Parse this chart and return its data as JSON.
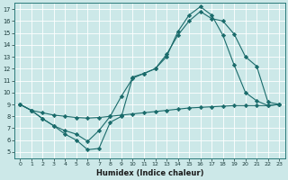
{
  "xlabel": "Humidex (Indice chaleur)",
  "bg_color": "#cce8e8",
  "grid_color": "#b0d4d4",
  "line_color": "#1a6b6b",
  "xlim": [
    -0.5,
    23.5
  ],
  "ylim": [
    4.5,
    17.5
  ],
  "xticks": [
    0,
    1,
    2,
    3,
    4,
    5,
    6,
    7,
    8,
    9,
    10,
    11,
    12,
    13,
    14,
    15,
    16,
    17,
    18,
    19,
    20,
    21,
    22,
    23
  ],
  "yticks": [
    5,
    6,
    7,
    8,
    9,
    10,
    11,
    12,
    13,
    14,
    15,
    16,
    17
  ],
  "line1_x": [
    0,
    1,
    2,
    3,
    4,
    5,
    6,
    7,
    8,
    9,
    10,
    11,
    12,
    13,
    14,
    15,
    16,
    17,
    18,
    19,
    20,
    21,
    22,
    23
  ],
  "line1_y": [
    9.0,
    8.5,
    8.3,
    8.1,
    8.0,
    7.9,
    7.85,
    7.9,
    8.0,
    8.1,
    8.2,
    8.3,
    8.4,
    8.5,
    8.6,
    8.7,
    8.75,
    8.8,
    8.85,
    8.9,
    8.9,
    8.9,
    8.9,
    9.0
  ],
  "line2_x": [
    0,
    1,
    2,
    3,
    4,
    5,
    6,
    7,
    8,
    9,
    10,
    11,
    12,
    13,
    14,
    15,
    16,
    17,
    18,
    19,
    20,
    21,
    22,
    23
  ],
  "line2_y": [
    9.0,
    8.5,
    7.8,
    7.2,
    6.5,
    6.0,
    5.2,
    5.3,
    7.5,
    8.0,
    11.3,
    11.6,
    12.0,
    13.0,
    15.1,
    16.5,
    17.2,
    16.5,
    14.8,
    12.3,
    10.0,
    9.3,
    8.9,
    9.0
  ],
  "line3_x": [
    0,
    1,
    2,
    3,
    4,
    5,
    6,
    7,
    8,
    9,
    10,
    11,
    12,
    13,
    14,
    15,
    16,
    17,
    18,
    19,
    20,
    21,
    22,
    23
  ],
  "line3_y": [
    9.0,
    8.5,
    7.8,
    7.2,
    6.8,
    6.5,
    5.9,
    6.8,
    8.0,
    9.7,
    11.2,
    11.6,
    12.0,
    13.2,
    14.8,
    16.0,
    16.8,
    16.2,
    16.0,
    14.9,
    13.0,
    12.2,
    9.2,
    9.0
  ]
}
